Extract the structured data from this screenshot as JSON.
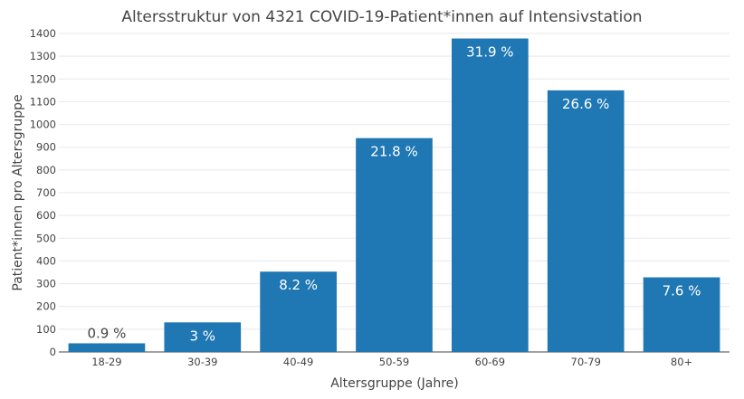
{
  "chart_data": {
    "type": "bar",
    "title": "Altersstruktur von 4321 COVID-19-Patient*innen auf Intensivstation",
    "xlabel": "Altersgruppe (Jahre)",
    "ylabel": "Patient*innen pro Altersgruppe",
    "categories": [
      "18-29",
      "30-39",
      "40-49",
      "50-59",
      "60-69",
      "70-79",
      "80+"
    ],
    "values": [
      38,
      130,
      353,
      940,
      1378,
      1150,
      328
    ],
    "data_labels": [
      "0.9 %",
      "3 %",
      "8.2 %",
      "21.8 %",
      "31.9 %",
      "26.6 %",
      "7.6 %"
    ],
    "ylim": [
      0,
      1400
    ],
    "yticks": [
      0,
      100,
      200,
      300,
      400,
      500,
      600,
      700,
      800,
      900,
      1000,
      1100,
      1200,
      1300,
      1400
    ],
    "grid": true,
    "bar_color": "#1f77b4"
  }
}
